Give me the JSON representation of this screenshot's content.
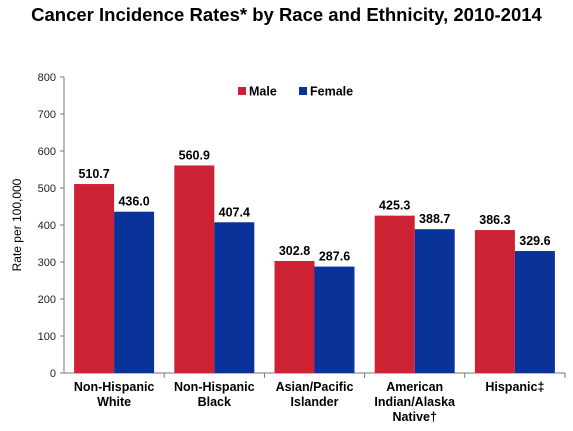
{
  "chart_data": {
    "type": "bar",
    "title": "Cancer Incidence Rates* by Race and Ethnicity, 2010-2014",
    "ylabel": "Rate per 100,000",
    "xlabel": "",
    "ylim": [
      0,
      800
    ],
    "yticks": [
      0,
      100,
      200,
      300,
      400,
      500,
      600,
      700,
      800
    ],
    "categories": [
      [
        "Non-Hispanic",
        "White"
      ],
      [
        "Non-Hispanic",
        "Black"
      ],
      [
        "Asian/Pacific",
        "Islander"
      ],
      [
        "American",
        "Indian/Alaska",
        "Native†"
      ],
      [
        "Hispanic‡"
      ]
    ],
    "series": [
      {
        "name": "Male",
        "color": "#cc2233",
        "values": [
          510.7,
          560.9,
          302.8,
          425.3,
          386.3
        ],
        "labels": [
          "510.7",
          "560.9",
          "302.8",
          "425.3",
          "386.3"
        ]
      },
      {
        "name": "Female",
        "color": "#0a3399",
        "values": [
          436.0,
          407.4,
          287.6,
          388.7,
          329.6
        ],
        "labels": [
          "436.0",
          "407.4",
          "287.6",
          "388.7",
          "329.6"
        ]
      }
    ],
    "legend_position": "top-center",
    "grid": false
  }
}
